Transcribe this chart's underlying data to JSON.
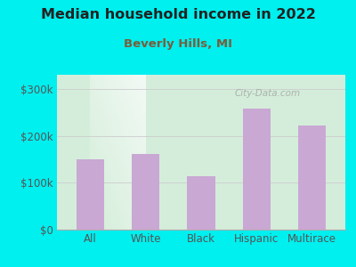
{
  "title": "Median household income in 2022",
  "subtitle": "Beverly Hills, MI",
  "categories": [
    "All",
    "White",
    "Black",
    "Hispanic",
    "Multirace"
  ],
  "values": [
    150000,
    162000,
    113000,
    258000,
    222000
  ],
  "bar_color": "#c9a8d4",
  "background_outer": "#00efef",
  "title_color": "#222222",
  "subtitle_color": "#7a5c3a",
  "tick_color": "#555555",
  "ylabel_ticks": [
    0,
    100000,
    200000,
    300000
  ],
  "ylabel_labels": [
    "$0",
    "$100k",
    "$200k",
    "$300k"
  ],
  "ylim": [
    0,
    330000
  ],
  "watermark": "City-Data.com",
  "grad_left_bottom": "#d4edda",
  "grad_right_top": "#f0f8f0"
}
